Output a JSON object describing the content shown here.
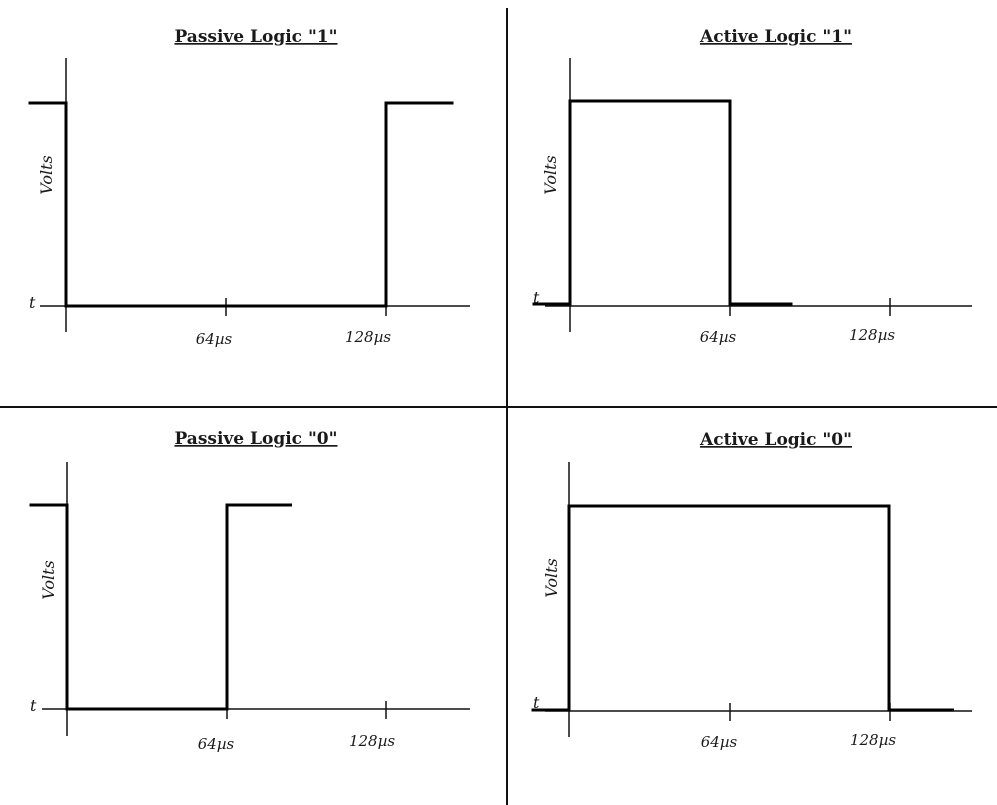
{
  "panels": [
    {
      "id": "passive-logic-1",
      "title": "Passive Logic \"1\"",
      "ylabel": "Volts",
      "tlabel": "t",
      "ticks": [
        "64µs",
        "128µs"
      ],
      "waveform": {
        "levels": [
          "high",
          "low",
          "high"
        ],
        "transitions_us": [
          0,
          128
        ],
        "end_us": 155,
        "pre_us": -15
      }
    },
    {
      "id": "active-logic-1",
      "title": "Active Logic \"1\"",
      "ylabel": "Volts",
      "tlabel": "t",
      "ticks": [
        "64µs",
        "128µs"
      ],
      "waveform": {
        "levels": [
          "low",
          "high",
          "low"
        ],
        "transitions_us": [
          0,
          64
        ],
        "end_us": 89,
        "pre_us": -15
      }
    },
    {
      "id": "passive-logic-0",
      "title": "Passive Logic \"0\"",
      "ylabel": "Volts",
      "tlabel": "t",
      "ticks": [
        "64µs",
        "128µs"
      ],
      "waveform": {
        "levels": [
          "high",
          "low",
          "high"
        ],
        "transitions_us": [
          0,
          64
        ],
        "end_us": 90,
        "pre_us": -15
      }
    },
    {
      "id": "active-logic-0",
      "title": "Active Logic \"0\"",
      "ylabel": "Volts",
      "tlabel": "t",
      "ticks": [
        "64µs",
        "128µs"
      ],
      "waveform": {
        "levels": [
          "low",
          "high",
          "low"
        ],
        "transitions_us": [
          0,
          128
        ],
        "end_us": 154,
        "pre_us": -15
      }
    }
  ]
}
